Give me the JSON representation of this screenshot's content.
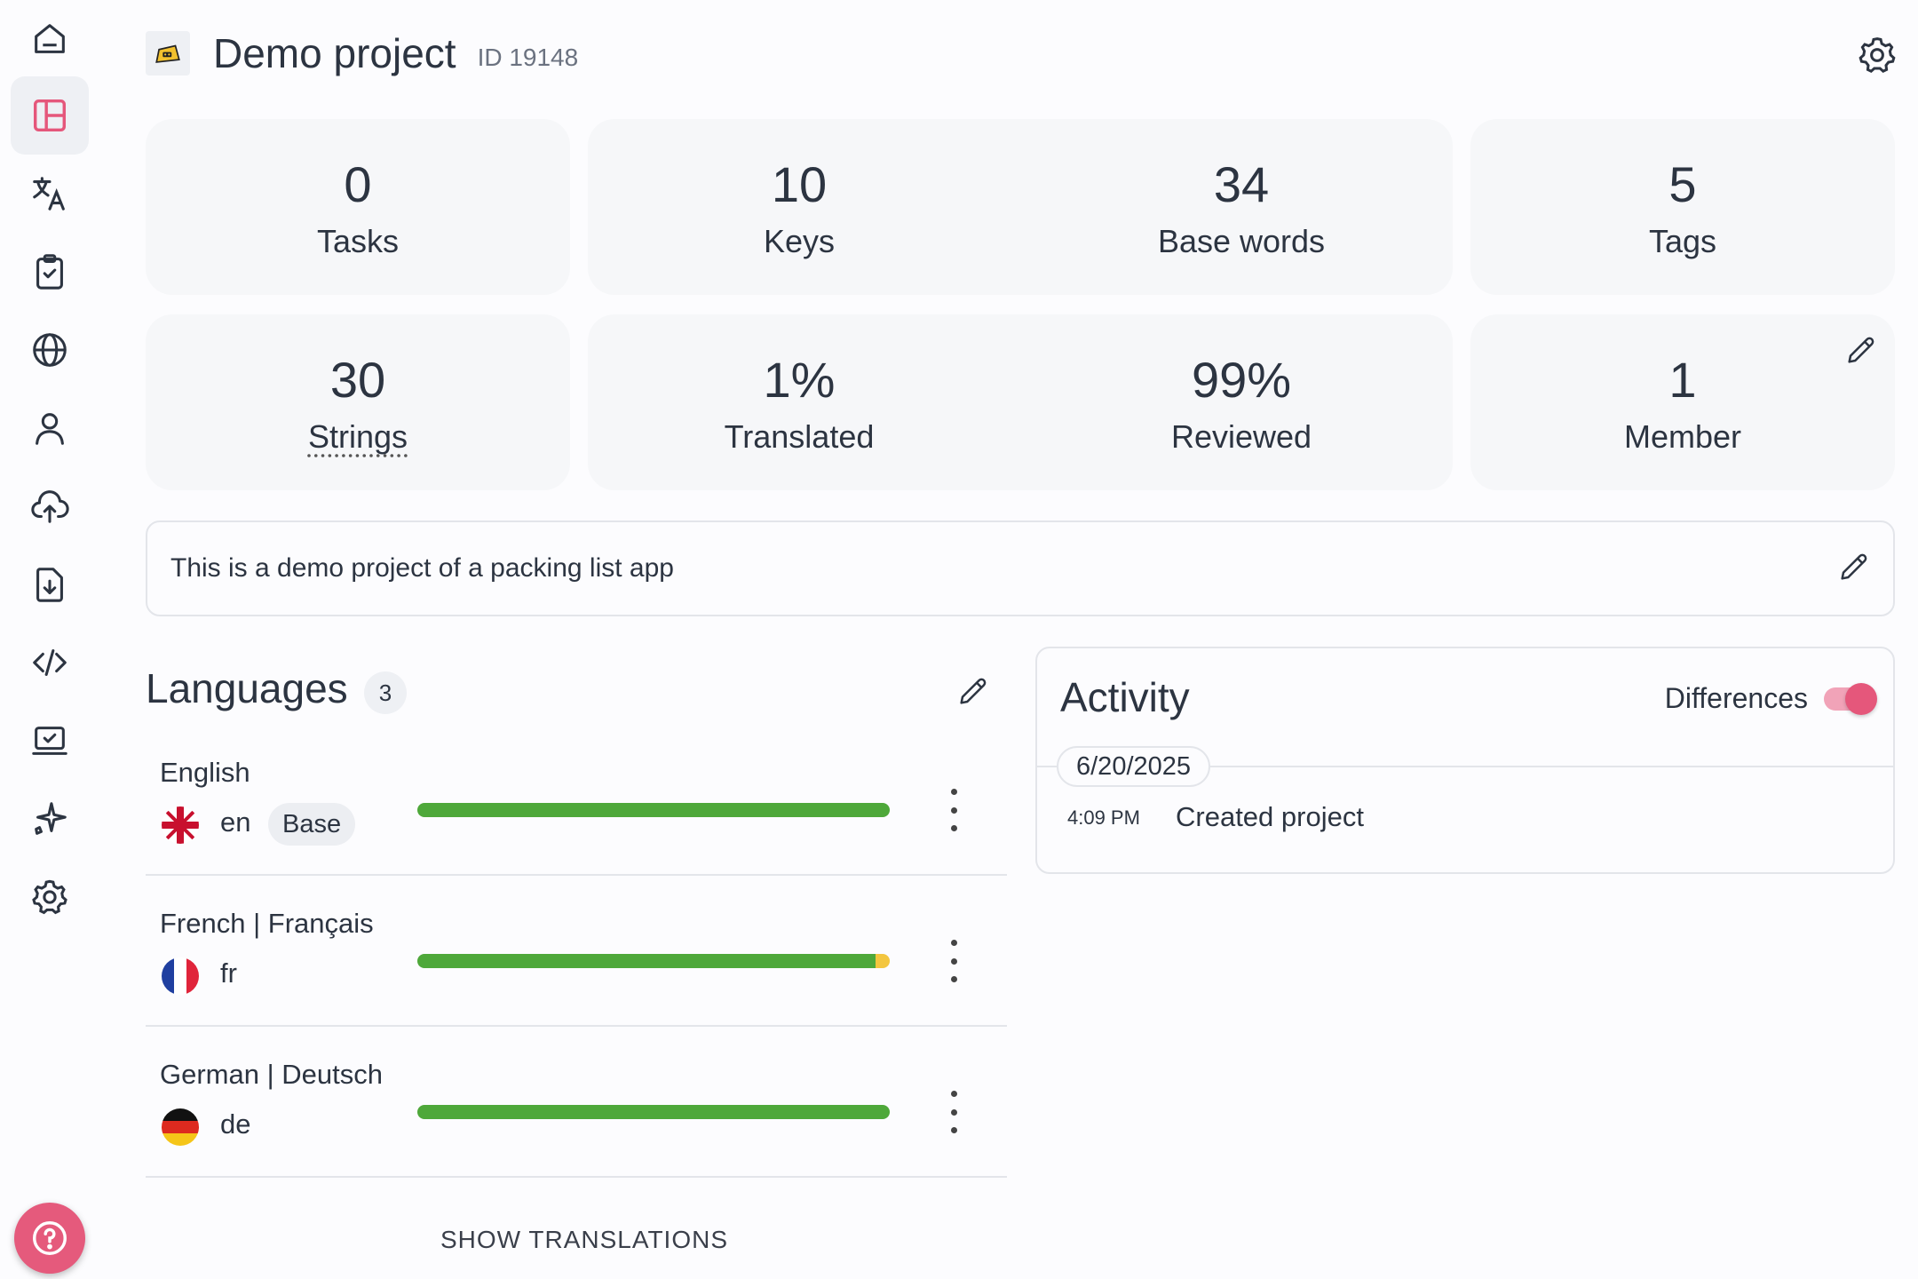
{
  "header": {
    "title": "Demo project",
    "id_label": "ID 19148"
  },
  "sidebar": {
    "items": [
      {
        "icon": "home-icon",
        "active": false
      },
      {
        "icon": "dashboard-icon",
        "active": true
      },
      {
        "icon": "translate-icon",
        "active": false
      },
      {
        "icon": "tasks-icon",
        "active": false
      },
      {
        "icon": "globe-icon",
        "active": false
      },
      {
        "icon": "user-icon",
        "active": false
      },
      {
        "icon": "upload-icon",
        "active": false
      },
      {
        "icon": "export-icon",
        "active": false
      },
      {
        "icon": "code-icon",
        "active": false
      },
      {
        "icon": "laptop-icon",
        "active": false
      },
      {
        "icon": "sparkle-icon",
        "active": false
      },
      {
        "icon": "gear-icon",
        "active": false
      }
    ],
    "help_icon": "help-icon"
  },
  "stats": {
    "tasks": {
      "value": "0",
      "label": "Tasks"
    },
    "keys": {
      "value": "10",
      "label": "Keys"
    },
    "base_words": {
      "value": "34",
      "label": "Base words"
    },
    "tags": {
      "value": "5",
      "label": "Tags"
    },
    "strings": {
      "value": "30",
      "label": "Strings"
    },
    "translated": {
      "value": "1%",
      "label": "Translated"
    },
    "reviewed": {
      "value": "99%",
      "label": "Reviewed"
    },
    "members": {
      "value": "1",
      "label": "Member"
    }
  },
  "description": "This is a demo project of a packing list app",
  "languages": {
    "title": "Languages",
    "count": "3",
    "items": [
      {
        "name": "English",
        "code": "en",
        "tag": "Base",
        "reviewed": 1.0,
        "translated": 0.0
      },
      {
        "name": "French | Français",
        "code": "fr",
        "tag": "",
        "reviewed": 0.97,
        "translated": 0.03
      },
      {
        "name": "German | Deutsch",
        "code": "de",
        "tag": "",
        "reviewed": 1.0,
        "translated": 0.0
      }
    ],
    "show_translations": "SHOW TRANSLATIONS"
  },
  "activity": {
    "title": "Activity",
    "differences_label": "Differences",
    "differences_on": true,
    "date": "6/20/2025",
    "entries": [
      {
        "time": "4:09 PM",
        "text": "Created project"
      }
    ]
  },
  "colors": {
    "accent": "#e5577b",
    "progress_reviewed": "#4ea83a",
    "progress_translated": "#f3c63f"
  }
}
